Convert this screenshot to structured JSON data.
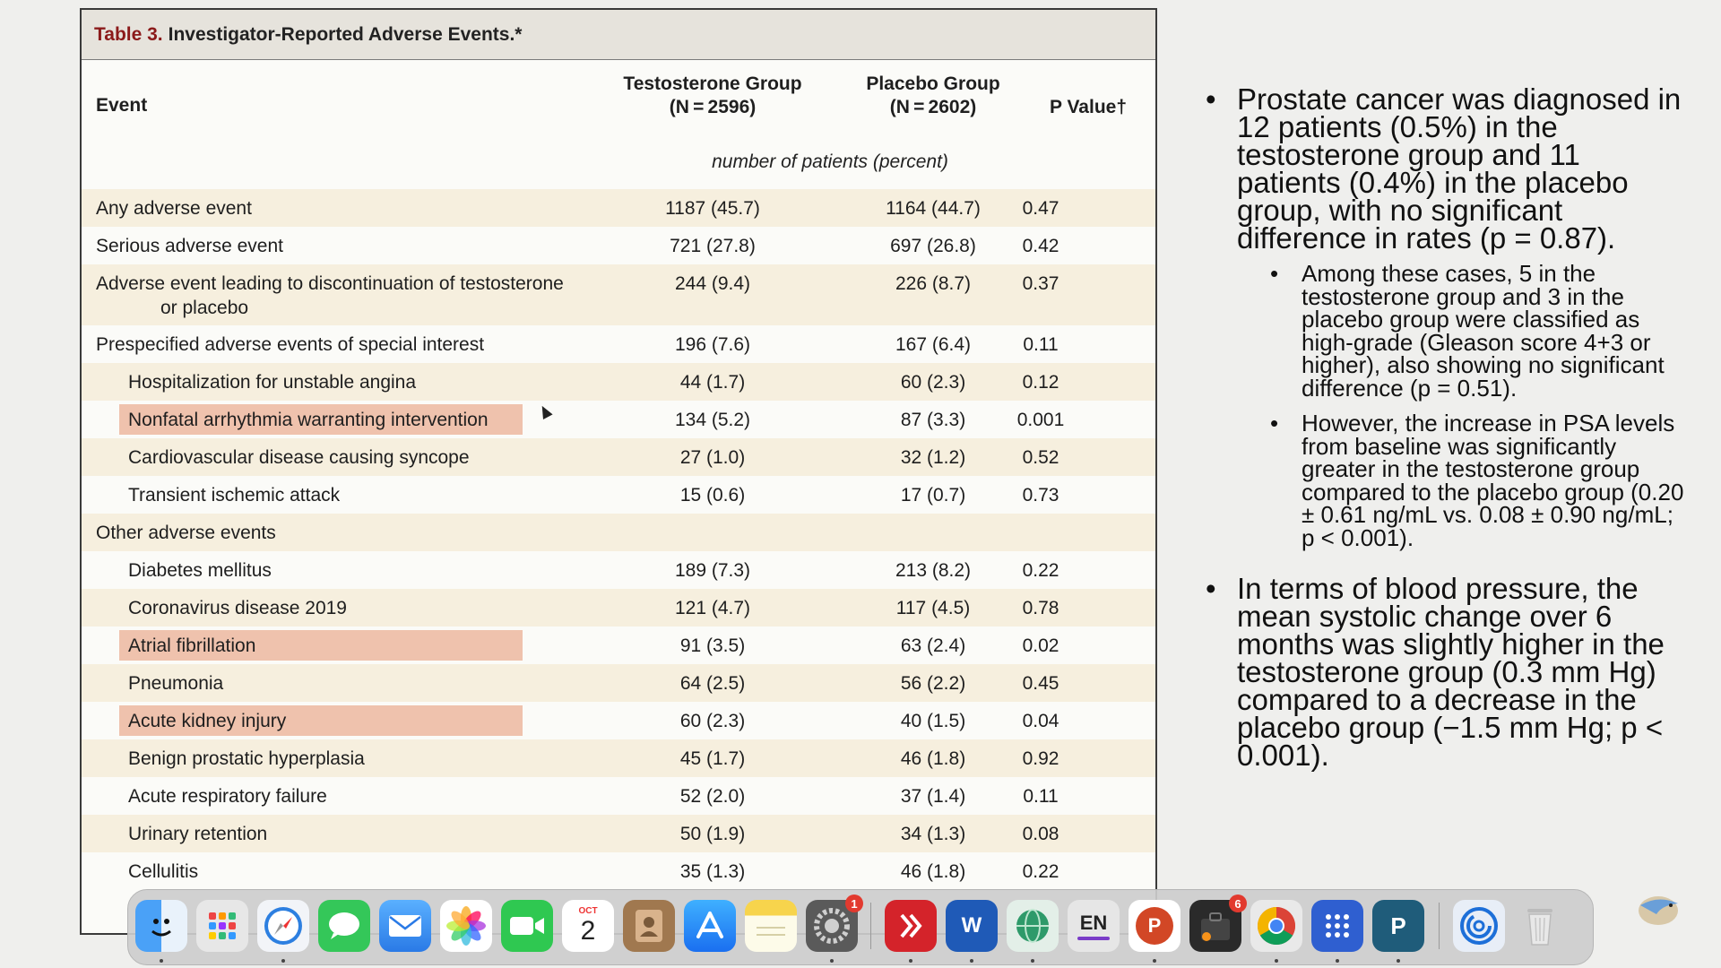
{
  "table": {
    "title_number": "Table 3.",
    "title_text": "Investigator-Reported Adverse Events.*",
    "headers": {
      "event": "Event",
      "testosterone_line1": "Testosterone Group",
      "testosterone_line2": "(N = 2596)",
      "placebo_line1": "Placebo Group",
      "placebo_line2": "(N = 2602)",
      "pvalue": "P Value†"
    },
    "units": "number of patients (percent)",
    "rows": [
      {
        "event": "Any adverse event",
        "t": "1187 (45.7)",
        "p": "1164 (44.7)",
        "pv": "0.47"
      },
      {
        "event": "Serious adverse event",
        "t": "721 (27.8)",
        "p": "697 (26.8)",
        "pv": "0.42"
      },
      {
        "event": "Adverse event leading to discontinuation of testosterone",
        "event_cont": "or placebo",
        "t": "244 (9.4)",
        "p": "226 (8.7)",
        "pv": "0.37"
      },
      {
        "event": "Prespecified adverse events of special interest",
        "t": "196 (7.6)",
        "p": "167 (6.4)",
        "pv": "0.11"
      },
      {
        "event": "Hospitalization for unstable angina",
        "t": "44 (1.7)",
        "p": "60 (2.3)",
        "pv": "0.12"
      },
      {
        "event": "Nonfatal arrhythmia warranting intervention",
        "t": "134 (5.2)",
        "p": "87 (3.3)",
        "pv": "0.001"
      },
      {
        "event": "Cardiovascular disease causing syncope",
        "t": "27 (1.0)",
        "p": "32 (1.2)",
        "pv": "0.52"
      },
      {
        "event": "Transient ischemic attack",
        "t": "15 (0.6)",
        "p": "17 (0.7)",
        "pv": "0.73"
      },
      {
        "event": "Other adverse events",
        "t": "",
        "p": "",
        "pv": ""
      },
      {
        "event": "Diabetes mellitus",
        "t": "189 (7.3)",
        "p": "213 (8.2)",
        "pv": "0.22"
      },
      {
        "event": "Coronavirus disease 2019",
        "t": "121 (4.7)",
        "p": "117 (4.5)",
        "pv": "0.78"
      },
      {
        "event": "Atrial fibrillation",
        "t": "91 (3.5)",
        "p": "63 (2.4)",
        "pv": "0.02"
      },
      {
        "event": "Pneumonia",
        "t": "64 (2.5)",
        "p": "56 (2.2)",
        "pv": "0.45"
      },
      {
        "event": "Acute kidney injury",
        "t": "60 (2.3)",
        "p": "40 (1.5)",
        "pv": "0.04"
      },
      {
        "event": "Benign prostatic hyperplasia",
        "t": "45 (1.7)",
        "p": "46 (1.8)",
        "pv": "0.92"
      },
      {
        "event": "Acute respiratory failure",
        "t": "52 (2.0)",
        "p": "37 (1.4)",
        "pv": "0.11"
      },
      {
        "event": "Urinary retention",
        "t": "50 (1.9)",
        "p": "34 (1.3)",
        "pv": "0.08"
      },
      {
        "event": "Cellulitis",
        "t": "35 (1.3)",
        "p": "46 (1.8)",
        "pv": "0.22"
      }
    ]
  },
  "notes": {
    "bullet1": "Prostate cancer was diagnosed in 12 patients (0.5%) in the testosterone group and 11 patients (0.4%) in the placebo group, with no significant difference in rates (p = 0.87).",
    "bullet1_sub1": "Among these cases, 5 in the testosterone group and 3 in the placebo group were classified as high-grade (Gleason score 4+3 or higher), also showing no significant difference (p = 0.51).",
    "bullet1_sub2": "However, the increase in PSA levels from baseline was significantly greater in the testosterone group compared to the placebo group (0.20 ± 0.61 ng/mL vs. 0.08 ± 0.90 ng/mL; p < 0.001).",
    "bullet2": "In terms of blood pressure, the mean systolic change over 6 months was slightly higher in the testosterone group (0.3 mm Hg) compared to a decrease in the placebo group (−1.5 mm Hg; p < 0.001)."
  },
  "dock": {
    "calendar_month": "OCT",
    "calendar_day": "2",
    "settings_badge": "1",
    "keyboard_label": "EN",
    "tool_badge": "6",
    "apps": [
      {
        "name": "finder-icon",
        "color": "#3d8df5"
      },
      {
        "name": "launchpad-icon",
        "color": "#8a8a8a"
      },
      {
        "name": "safari-icon",
        "color": "#2d7fe0"
      },
      {
        "name": "messages-icon",
        "color": "#34c759"
      },
      {
        "name": "mail-icon",
        "color": "#3a8ff0"
      },
      {
        "name": "photos-icon",
        "color": "#ffffff"
      },
      {
        "name": "facetime-icon",
        "color": "#2fc851"
      },
      {
        "name": "calendar-icon",
        "color": "#ffffff"
      },
      {
        "name": "contacts-icon",
        "color": "#a0784f"
      },
      {
        "name": "app-store-icon",
        "color": "#1a8cf0"
      },
      {
        "name": "notes-icon",
        "color": "#f7d44c"
      },
      {
        "name": "system-settings-icon",
        "color": "#5a5a5a"
      },
      {
        "name": "remote-desktop-icon",
        "color": "#d4232a"
      },
      {
        "name": "word-icon",
        "color": "#1f5ab7"
      },
      {
        "name": "globe-network-icon",
        "color": "#2e9a6a"
      },
      {
        "name": "input-source-icon",
        "color": "#e6e6e6"
      },
      {
        "name": "powerpoint-icon",
        "color": "#d24726"
      },
      {
        "name": "dark-tool-icon",
        "color": "#2a2a2a"
      },
      {
        "name": "chrome-icon",
        "color": "#e9e9e9"
      },
      {
        "name": "dots-grid-icon",
        "color": "#2f5fd0"
      },
      {
        "name": "publisher-icon",
        "color": "#1f5c7a"
      },
      {
        "name": "spiral-app-icon",
        "color": "#1d6fd8"
      },
      {
        "name": "trash-icon",
        "color": "#d9d9d9"
      }
    ]
  }
}
